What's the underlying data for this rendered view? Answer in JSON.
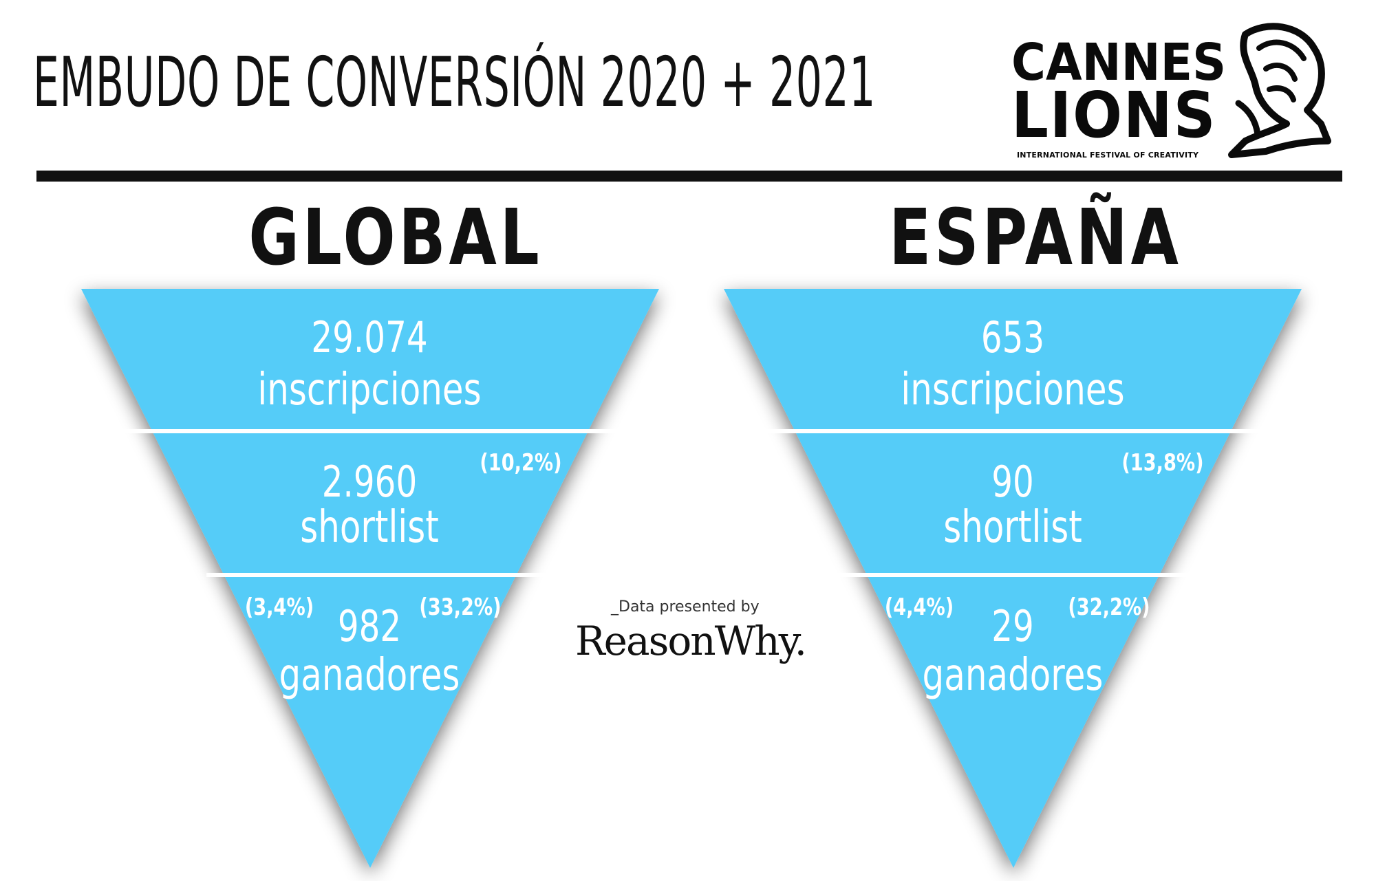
{
  "title": "EMBUDO DE CONVERSIÓN 2020 + 2021",
  "logo": {
    "line1": "CANNES",
    "line2": "LIONS",
    "tagline": "INTERNATIONAL FESTIVAL OF CREATIVITY",
    "icon": "lion-icon"
  },
  "colors": {
    "funnel": "#55ccf8",
    "text": "#111111",
    "divider": "#ffffff"
  },
  "global": {
    "heading": "GLOBAL",
    "stage1": {
      "value": "29.074",
      "label": "inscripciones"
    },
    "stage2": {
      "value": "2.960",
      "label": "shortlist",
      "pct": "(10,2%)"
    },
    "stage3": {
      "value": "982",
      "label": "ganadores",
      "pct_total": "(3,4%)",
      "pct_stage": "(33,2%)"
    }
  },
  "spain": {
    "heading": "ESPAÑA",
    "stage1": {
      "value": "653",
      "label": "inscripciones"
    },
    "stage2": {
      "value": "90",
      "label": "shortlist",
      "pct": "(13,8%)"
    },
    "stage3": {
      "value": "29",
      "label": "ganadores",
      "pct_total": "(4,4%)",
      "pct_stage": "(32,2%)"
    }
  },
  "credit": {
    "presented": "_Data presented by",
    "brand": "ReasonWhy."
  }
}
